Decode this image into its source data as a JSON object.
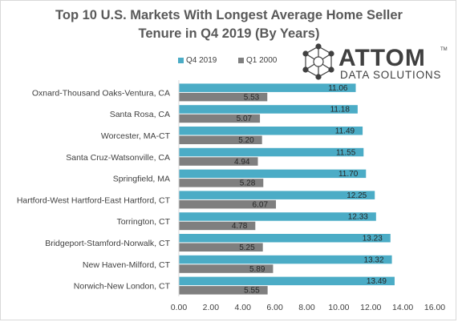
{
  "chart_data": {
    "type": "bar",
    "orientation": "horizontal",
    "title_line1": "Top 10 U.S. Markets With Longest Average Home Seller",
    "title_line2": "Tenure in Q4 2019 (By Years)",
    "categories": [
      "Oxnard-Thousand Oaks-Ventura, CA",
      "Santa Rosa, CA",
      "Worcester, MA-CT",
      "Santa Cruz-Watsonville, CA",
      "Springfield, MA",
      "Hartford-West Hartford-East Hartford, CT",
      "Torrington, CT",
      "Bridgeport-Stamford-Norwalk, CT",
      "New Haven-Milford, CT",
      "Norwich-New London, CT"
    ],
    "series": [
      {
        "name": "Q4 2019",
        "color": "#4bacc6",
        "values": [
          11.06,
          11.18,
          11.49,
          11.55,
          11.7,
          12.25,
          12.33,
          13.23,
          13.32,
          13.49
        ],
        "labels": [
          "11.06",
          "11.18",
          "11.49",
          "11.55",
          "11.70",
          "12.25",
          "12.33",
          "13.23",
          "13.32",
          "13.49"
        ]
      },
      {
        "name": "Q1 2000",
        "color": "#7f7f7f",
        "values": [
          5.53,
          5.07,
          5.2,
          4.94,
          5.28,
          6.07,
          4.78,
          5.25,
          5.89,
          5.55
        ],
        "labels": [
          "5.53",
          "5.07",
          "5.20",
          "4.94",
          "5.28",
          "6.07",
          "4.78",
          "5.25",
          "5.89",
          "5.55"
        ]
      }
    ],
    "xlim": [
      0,
      16
    ],
    "xticks": [
      0,
      2,
      4,
      6,
      8,
      10,
      12,
      14,
      16
    ],
    "xtick_labels": [
      "0.00",
      "2.00",
      "4.00",
      "6.00",
      "8.00",
      "10.00",
      "12.00",
      "14.00",
      "16.00"
    ],
    "xlabel": "",
    "ylabel": "",
    "grid": false,
    "legend_position": "top"
  },
  "logo": {
    "brand": "ATTOM",
    "tagline": "DATA SOLUTIONS",
    "mark": "TM",
    "icon": "network-hexagon-icon",
    "color": "#404040"
  }
}
